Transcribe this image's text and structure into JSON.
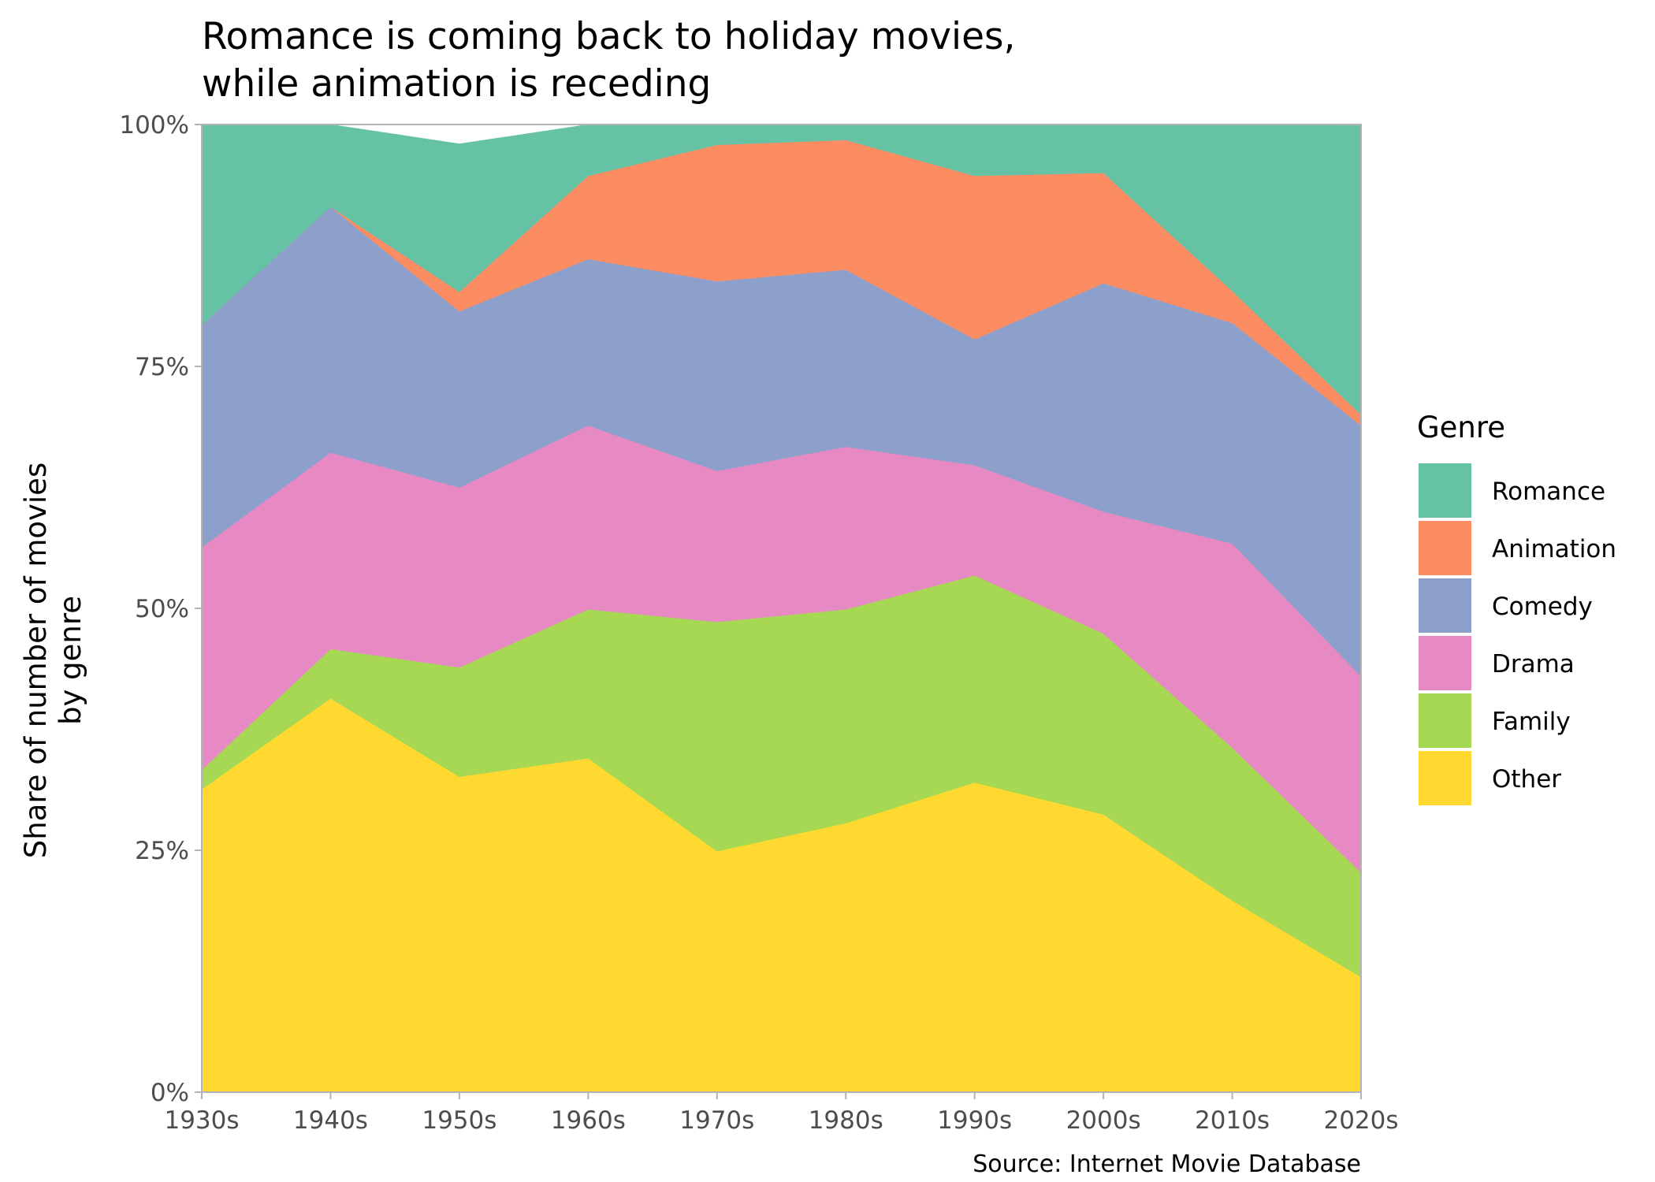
{
  "chart_data": {
    "type": "area",
    "stacked": true,
    "normalized": true,
    "title_lines": [
      "Romance is coming back to holiday movies,",
      "while animation is receding"
    ],
    "ylabel_lines": [
      "Share of number of movies",
      "by genre"
    ],
    "xlabel": "",
    "caption": "Source: Internet Movie Database",
    "legend": {
      "title": "Genre",
      "position": "right"
    },
    "grid": false,
    "x": [
      "1930s",
      "1940s",
      "1950s",
      "1960s",
      "1970s",
      "1980s",
      "1990s",
      "2000s",
      "2010s",
      "2020s"
    ],
    "ylim": [
      0,
      100
    ],
    "yticks": [
      0,
      25,
      50,
      75,
      100
    ],
    "ytick_labels": [
      "0%",
      "25%",
      "50%",
      "75%",
      "100%"
    ],
    "stack_order_bottom_to_top": [
      "Other",
      "Family",
      "Drama",
      "Comedy",
      "Animation",
      "Romance"
    ],
    "series": [
      {
        "name": "Romance",
        "color": "#66c2a5",
        "values": [
          20.7,
          8.5,
          15.3,
          5.3,
          2.1,
          1.6,
          5.3,
          5.0,
          17.2,
          29.9
        ]
      },
      {
        "name": "Animation",
        "color": "#fc8d62",
        "values": [
          0.0,
          0.0,
          2.0,
          8.6,
          14.1,
          13.4,
          16.9,
          11.4,
          3.3,
          1.1
        ]
      },
      {
        "name": "Comedy",
        "color": "#8da0cb",
        "values": [
          23.0,
          25.4,
          18.2,
          17.2,
          19.6,
          18.3,
          13.0,
          23.6,
          22.8,
          25.9
        ]
      },
      {
        "name": "Drama",
        "color": "#e78ac3",
        "values": [
          23.0,
          20.3,
          18.6,
          19.0,
          15.6,
          16.8,
          11.4,
          12.6,
          21.1,
          20.3
        ]
      },
      {
        "name": "Family",
        "color": "#a6d854",
        "values": [
          2.0,
          5.1,
          11.3,
          15.4,
          23.7,
          22.1,
          21.4,
          18.7,
          15.8,
          10.8
        ]
      },
      {
        "name": "Other",
        "color": "#ffd92f",
        "values": [
          31.3,
          40.7,
          32.6,
          34.5,
          24.9,
          27.8,
          32.0,
          28.7,
          19.8,
          11.9
        ]
      }
    ]
  }
}
